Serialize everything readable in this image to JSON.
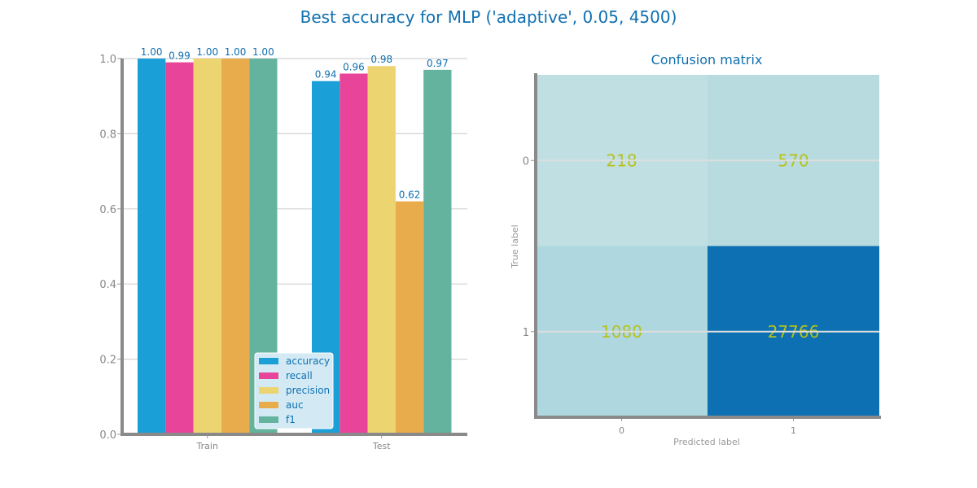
{
  "figure": {
    "title": "Best accuracy for MLP ('adaptive', 0.05, 4500)"
  },
  "chart_data": [
    {
      "type": "bar",
      "title": "",
      "xlabel": "",
      "ylabel": "",
      "categories": [
        "Train",
        "Test"
      ],
      "ylim": [
        0,
        1.0
      ],
      "yticks": [
        "0.0",
        "0.2",
        "0.4",
        "0.6",
        "0.8",
        "1.0"
      ],
      "grid": true,
      "legend_position": "bottom-right",
      "series": [
        {
          "name": "accuracy",
          "values": [
            1.0,
            0.94
          ],
          "labels": [
            "1.00",
            "0.94"
          ],
          "color": "#1a9fd6"
        },
        {
          "name": "recall",
          "values": [
            0.99,
            0.96
          ],
          "labels": [
            "0.99",
            "0.96"
          ],
          "color": "#e8449a"
        },
        {
          "name": "precision",
          "values": [
            1.0,
            0.98
          ],
          "labels": [
            "1.00",
            "0.98"
          ],
          "color": "#ecd470"
        },
        {
          "name": "auc",
          "values": [
            1.0,
            0.62
          ],
          "labels": [
            "1.00",
            "0.62"
          ],
          "color": "#e8ac4c"
        },
        {
          "name": "f1",
          "values": [
            1.0,
            0.97
          ],
          "labels": [
            "1.00",
            "0.97"
          ],
          "color": "#63b39f"
        }
      ]
    },
    {
      "type": "heatmap",
      "title": "Confusion matrix",
      "xlabel": "Predicted label",
      "ylabel": "True label",
      "x_categories": [
        "0",
        "1"
      ],
      "y_categories": [
        "0",
        "1"
      ],
      "values": [
        [
          218,
          570
        ],
        [
          1080,
          27766
        ]
      ],
      "value_labels": [
        [
          "218",
          "570"
        ],
        [
          "1080",
          "27766"
        ]
      ],
      "cell_colors": [
        [
          "#c0dfe3",
          "#b8dbdf"
        ],
        [
          "#aed7df",
          "#0d70b2"
        ]
      ]
    }
  ]
}
